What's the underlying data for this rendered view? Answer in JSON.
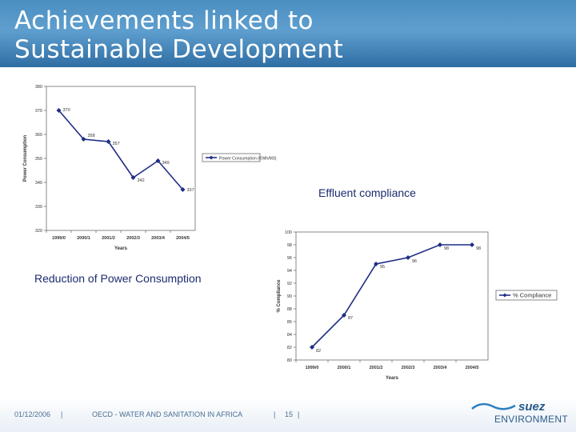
{
  "slide": {
    "title": "Achievements linked to\nSustainable Development",
    "caption_power": "Reduction of Power Consumption",
    "caption_effluent": "Effluent compliance"
  },
  "footer": {
    "date": "01/12/2006",
    "center": "OECD - WATER AND SANITATION IN AFRICA",
    "page": "15",
    "logo_top": "suez",
    "logo_bottom": "ENVIRONMENT"
  },
  "colors": {
    "header": "#4a8ec0",
    "series": "#1f2d86",
    "caption": "#1c2c6e",
    "footer_text": "#4a6f93"
  },
  "chart_data": [
    {
      "type": "line",
      "title": "",
      "xlabel": "Years",
      "ylabel": "Power Consumption",
      "categories": [
        "1999/0",
        "2000/1",
        "2001/2",
        "2002/3",
        "2003/4",
        "2004/5"
      ],
      "series": [
        {
          "name": "Power Consumption (KWh/M3)",
          "values": [
            370,
            358,
            357,
            342,
            349,
            337
          ]
        }
      ],
      "data_labels": [
        "370",
        "358",
        "357",
        "342",
        "349",
        "337"
      ],
      "y_ticks": [
        "380",
        "370",
        "360",
        "350",
        "340",
        "330",
        "320"
      ],
      "ylim": [
        320,
        380
      ],
      "legend": "right",
      "grid": false
    },
    {
      "type": "line",
      "title": "",
      "xlabel": "Years",
      "ylabel": "% Compliance",
      "categories": [
        "1999/0",
        "2000/1",
        "2001/2",
        "2002/3",
        "2003/4",
        "2004/5"
      ],
      "series": [
        {
          "name": "% Compliance",
          "values": [
            82,
            87,
            95,
            96,
            98,
            98
          ]
        }
      ],
      "data_labels": [
        "82",
        "87",
        "95",
        "96",
        "98",
        "98"
      ],
      "y_ticks": [
        "100",
        "98",
        "96",
        "94",
        "92",
        "90",
        "88",
        "86",
        "84",
        "82",
        "80"
      ],
      "ylim": [
        80,
        100
      ],
      "legend": "right",
      "grid": false
    }
  ]
}
